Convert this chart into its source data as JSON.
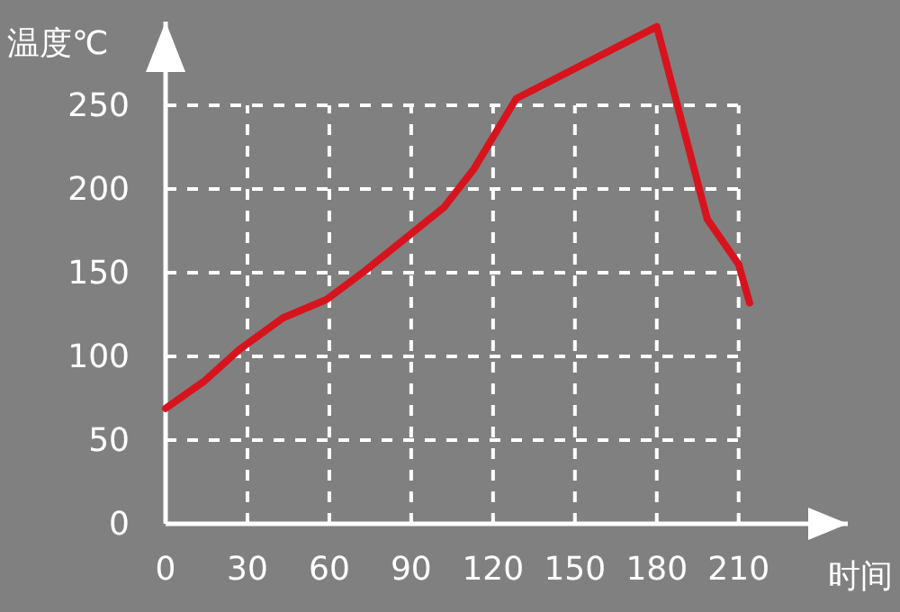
{
  "chart_data": {
    "type": "line",
    "xlabel": "时间",
    "ylabel": "温度℃",
    "x": [
      0,
      14,
      27,
      43,
      59,
      73,
      89,
      102,
      113,
      128.5,
      180,
      198.5,
      210,
      214
    ],
    "series": [
      {
        "color": "#d7141e",
        "values": [
          69,
          85,
          104,
          123,
          134,
          151,
          172,
          189,
          212,
          254,
          297,
          182,
          155,
          132
        ]
      }
    ],
    "xlim": [
      0,
      250
    ],
    "ylim": [
      0,
      300
    ],
    "xticks": [
      0,
      30,
      60,
      90,
      120,
      150,
      180,
      210
    ],
    "yticks": [
      0,
      50,
      100,
      150,
      200,
      250
    ],
    "grid": true,
    "marker": "none",
    "line_style": "solid"
  }
}
